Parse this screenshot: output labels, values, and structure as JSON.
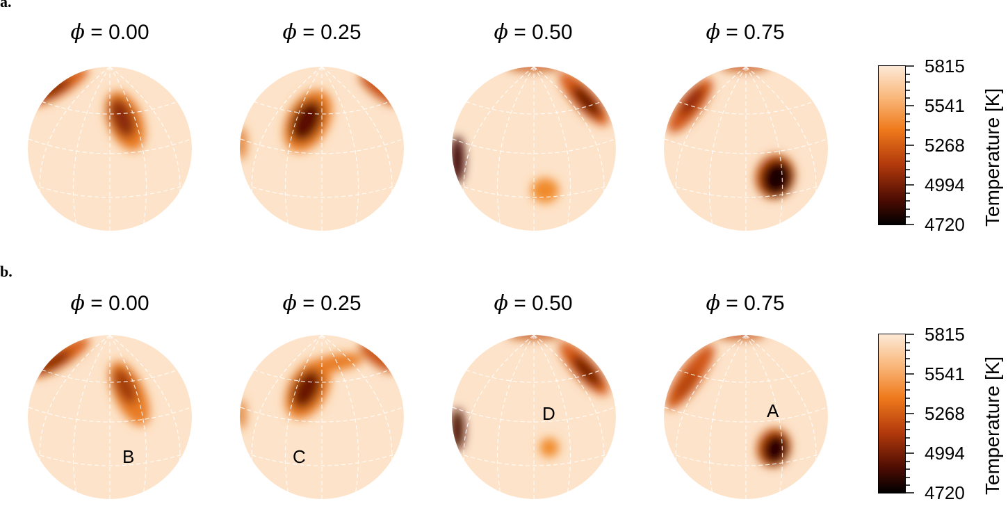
{
  "panels": [
    {
      "label": "a.",
      "phases": [
        "0.00",
        "0.25",
        "0.50",
        "0.75"
      ],
      "spot_labels": []
    },
    {
      "label": "b.",
      "phases": [
        "0.00",
        "0.25",
        "0.50",
        "0.75"
      ],
      "spot_labels": [
        "B",
        "C",
        "D",
        "A"
      ]
    }
  ],
  "phase_symbol": "ϕ",
  "phase_eq": "= ",
  "colorbar": {
    "title": "Temperature [K]",
    "ticks": [
      "5815",
      "5541",
      "5268",
      "4994",
      "4720"
    ],
    "range_K": [
      4720,
      5815
    ],
    "colors": {
      "hot": "#fde5cc",
      "mid": "#ef7a1c",
      "cool": "#000000"
    }
  },
  "sphere_colors": {
    "photosphere": "#fde3c9",
    "grid": "#ffffff"
  }
}
